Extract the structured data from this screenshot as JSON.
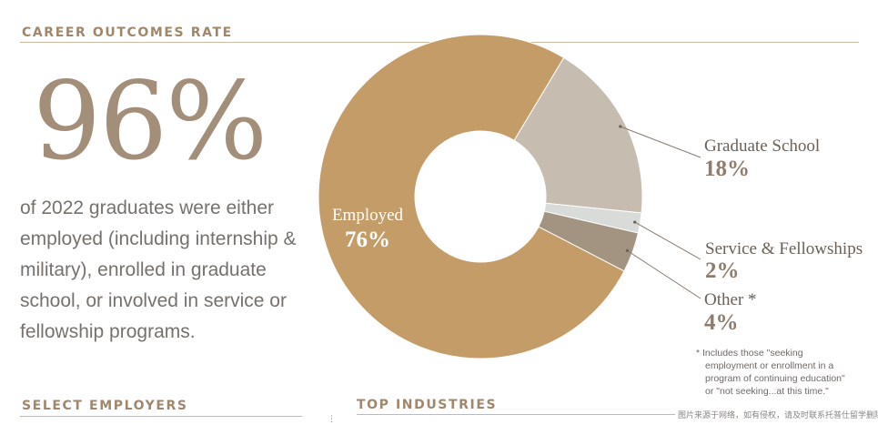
{
  "header": {
    "title": "CAREER OUTCOMES RATE"
  },
  "headline": {
    "percent": "96%",
    "description": "of 2022 graduates were either employed (including internship & military), enrolled in graduate school, or involved in service or fellowship programs."
  },
  "chart_data": {
    "type": "pie",
    "categories": [
      "Employed",
      "Graduate School",
      "Service & Fellowships",
      "Other *"
    ],
    "values": [
      76,
      18,
      2,
      4
    ],
    "value_labels": [
      "76%",
      "18%",
      "2%",
      "4%"
    ],
    "colors": [
      "#c49c68",
      "#c6bdb0",
      "#d8dbd8",
      "#a29480"
    ],
    "title": "",
    "donut": true
  },
  "footnote": {
    "marker": "*",
    "lines": [
      "Includes those \"seeking",
      "employment or enrollment in a",
      "program of continuing education\"",
      "or \"not seeking...at this time.\""
    ]
  },
  "sections": {
    "employers": "SELECT EMPLOYERS",
    "industries": "TOP INDUSTRIES"
  },
  "watermark": "图片来源于网络，如有侵权，请及时联系托普仕留学删除"
}
